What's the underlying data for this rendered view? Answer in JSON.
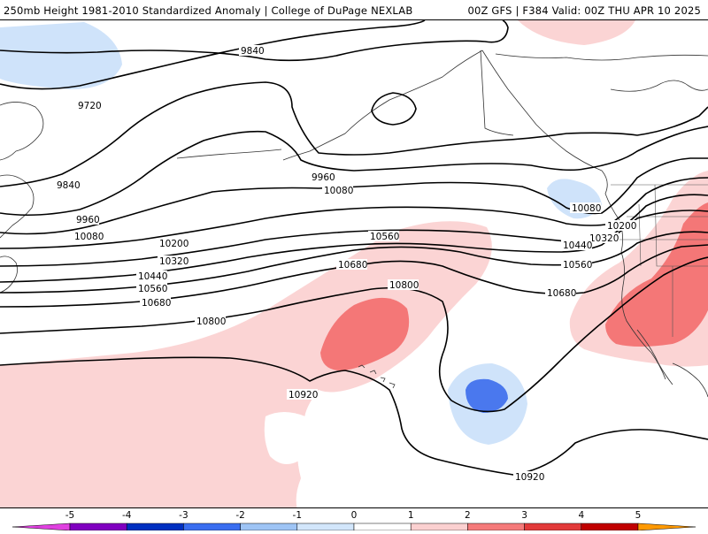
{
  "header": {
    "left": "250mb Height 1981-2010 Standardized Anomaly | College of DuPage NEXLAB",
    "right": "00Z GFS | F384 Valid: 00Z THU APR 10 2025"
  },
  "contour_labels": [
    "9840",
    "9720",
    "9840",
    "9960",
    "10080",
    "10200",
    "10320",
    "10440",
    "10560",
    "10680",
    "10800",
    "10920",
    "9960",
    "10080",
    "10560",
    "10680",
    "10800",
    "10080",
    "10200",
    "10320",
    "10440",
    "10560",
    "10680",
    "10920"
  ],
  "colorbar": {
    "ticks": [
      "-5",
      "-4",
      "-3",
      "-2",
      "-1",
      "0",
      "1",
      "2",
      "3",
      "4",
      "5"
    ],
    "colors": [
      "#e040e0",
      "#8000c0",
      "#0030c0",
      "#3a6ef0",
      "#9ec4f5",
      "#d2e6fb",
      "#ffffff",
      "#fbd0d0",
      "#f57a7a",
      "#e23a3a",
      "#c00000",
      "#ff9900",
      "#ffd000"
    ]
  },
  "anomaly_colors": {
    "neg1": "#cfe3fa",
    "neg2": "#4a78ee",
    "pos1": "#fbd4d4",
    "pos2": "#f47777"
  }
}
